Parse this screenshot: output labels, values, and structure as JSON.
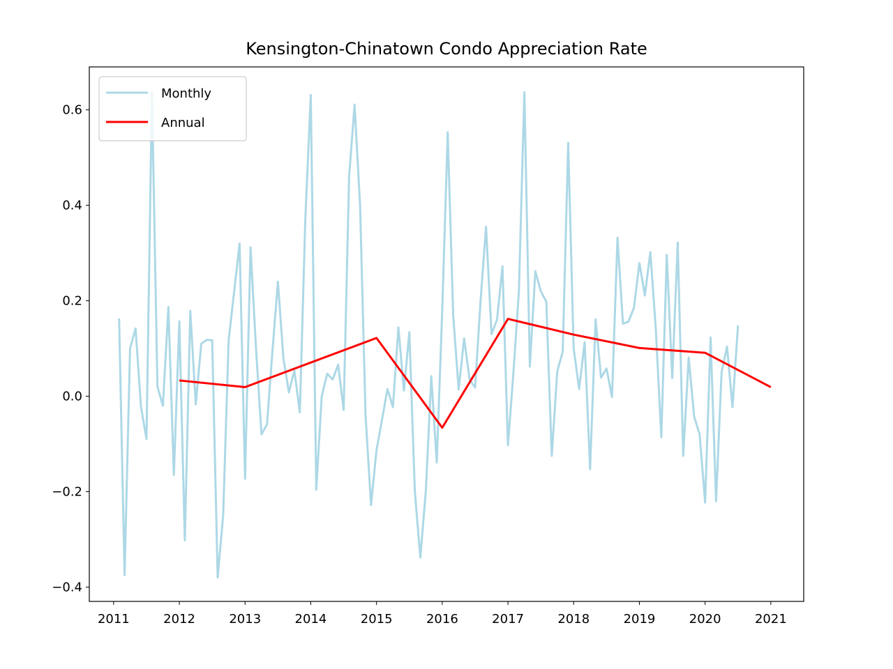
{
  "chart_data": {
    "type": "line",
    "title": "Kensington-Chinatown Condo Appreciation Rate",
    "xlabel": "",
    "ylabel": "",
    "xlim": [
      2010.63,
      2021.5
    ],
    "ylim": [
      -0.43,
      0.69
    ],
    "x_ticks": [
      2011,
      2012,
      2013,
      2014,
      2015,
      2016,
      2017,
      2018,
      2019,
      2020,
      2021
    ],
    "x_tick_labels": [
      "2011",
      "2012",
      "2013",
      "2014",
      "2015",
      "2016",
      "2017",
      "2018",
      "2019",
      "2020",
      "2021"
    ],
    "y_ticks": [
      -0.4,
      -0.2,
      0.0,
      0.2,
      0.4,
      0.6
    ],
    "y_tick_labels": [
      "−0.4",
      "−0.2",
      "0.0",
      "0.2",
      "0.4",
      "0.6"
    ],
    "grid": false,
    "legend": {
      "position": "top-left",
      "entries": [
        "Monthly",
        "Annual"
      ]
    },
    "series": [
      {
        "name": "Monthly",
        "color": "#add8e6",
        "x_start": "2011-02",
        "step": "month",
        "values": [
          0.163,
          -0.375,
          0.1,
          0.142,
          -0.022,
          -0.09,
          0.638,
          0.02,
          -0.02,
          0.187,
          -0.165,
          0.157,
          -0.302,
          0.179,
          -0.017,
          0.11,
          0.118,
          0.117,
          -0.38,
          -0.25,
          0.117,
          0.218,
          0.32,
          -0.173,
          0.312,
          0.1,
          -0.08,
          -0.059,
          0.095,
          0.24,
          0.08,
          0.008,
          0.054,
          -0.034,
          0.37,
          0.631,
          -0.196,
          0.0,
          0.047,
          0.035,
          0.066,
          -0.029,
          0.46,
          0.611,
          0.4,
          -0.04,
          -0.228,
          -0.113,
          -0.05,
          0.015,
          -0.023,
          0.144,
          0.012,
          0.134,
          -0.2,
          -0.338,
          -0.2,
          0.042,
          -0.139,
          0.18,
          0.553,
          0.17,
          0.014,
          0.121,
          0.035,
          0.018,
          0.2,
          0.355,
          0.13,
          0.16,
          0.272,
          -0.103,
          0.05,
          0.22,
          0.637,
          0.062,
          0.262,
          0.22,
          0.198,
          -0.125,
          0.052,
          0.093,
          0.531,
          0.1,
          0.015,
          0.113,
          -0.153,
          0.161,
          0.039,
          0.058,
          -0.002,
          0.332,
          0.152,
          0.156,
          0.185,
          0.279,
          0.211,
          0.302,
          0.14,
          -0.086,
          0.296,
          0.038,
          0.322,
          -0.125,
          0.081,
          -0.043,
          -0.08,
          -0.223,
          0.123,
          -0.22,
          0.05,
          0.104,
          -0.023,
          0.148
        ]
      },
      {
        "name": "Annual",
        "color": "#ff0000",
        "x": [
          2012,
          2013,
          2015,
          2016,
          2017,
          2018,
          2019,
          2020,
          2021
        ],
        "values": [
          0.033,
          0.019,
          0.122,
          -0.066,
          0.162,
          0.129,
          0.101,
          0.091,
          0.019
        ]
      }
    ]
  }
}
